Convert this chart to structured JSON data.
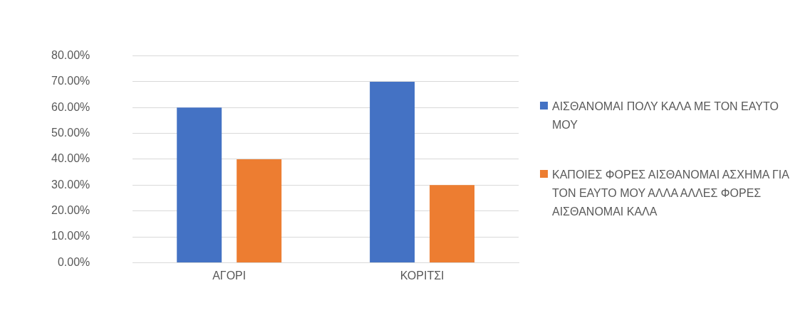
{
  "chart_data": {
    "type": "bar",
    "categories": [
      "ΑΓΟΡΙ",
      "ΚΟΡΙΤΣΙ"
    ],
    "series": [
      {
        "name": "ΑΙΣΘΑΝΟΜΑΙ ΠΟΛΥ ΚΑΛΑ ΜΕ ΤΟΝ ΕΑΥΤΟ ΜΟΥ",
        "color": "#4472c4",
        "values": [
          60,
          70
        ]
      },
      {
        "name": "ΚΑΠΟΙΕΣ ΦΟΡΕΣ ΑΙΣΘΑΝΟΜΑΙ ΑΣΧΗΜΑ ΓΙΑ ΤΟΝ ΕΑΥΤΟ ΜΟΥ ΑΛΛΑ ΑΛΛΕΣ ΦΟΡΕΣ ΑΙΣΘΑΝΟΜΑΙ ΚΑΛΑ",
        "color": "#ed7d31",
        "values": [
          40,
          30
        ]
      }
    ],
    "ylim": [
      0,
      80
    ],
    "yticks": [
      {
        "value": 0,
        "label": "0.00%"
      },
      {
        "value": 10,
        "label": "10.00%"
      },
      {
        "value": 20,
        "label": "20.00%"
      },
      {
        "value": 30,
        "label": "30.00%"
      },
      {
        "value": 40,
        "label": "40.00%"
      },
      {
        "value": 50,
        "label": "50.00%"
      },
      {
        "value": 60,
        "label": "60.00%"
      },
      {
        "value": 70,
        "label": "70.00%"
      },
      {
        "value": 80,
        "label": "80.00%"
      }
    ],
    "grid": "y",
    "legend": "right"
  }
}
